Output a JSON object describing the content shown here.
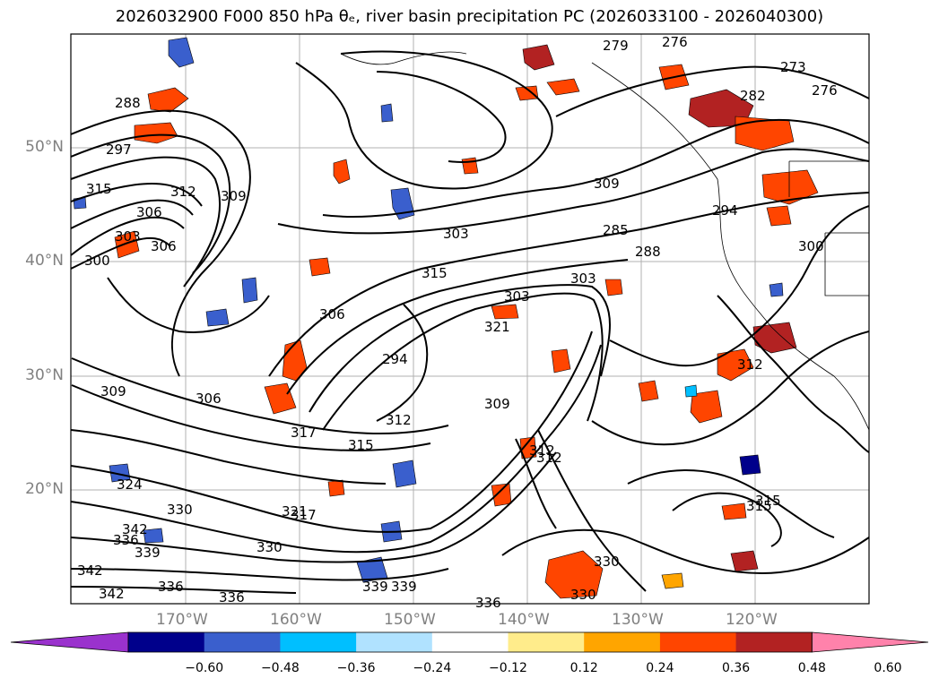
{
  "title": "2026032900 F000 850 hPa θₑ, river basin precipitation PC (2026033100 - 2026040300)",
  "map": {
    "lat_ticks": [
      "50°N",
      "40°N",
      "30°N",
      "20°N"
    ],
    "lon_ticks": [
      "170°W",
      "160°W",
      "150°W",
      "140°W",
      "130°W",
      "120°W"
    ],
    "contour_labels": [
      "279",
      "276",
      "273",
      "276",
      "282",
      "288",
      "297",
      "315",
      "312",
      "309",
      "306",
      "303",
      "300",
      "306",
      "309",
      "303",
      "285",
      "288",
      "294",
      "300",
      "315",
      "303",
      "321",
      "306",
      "294",
      "303",
      "312",
      "306",
      "309",
      "312",
      "317",
      "315",
      "309",
      "312",
      "315",
      "324",
      "330",
      "321",
      "342",
      "336",
      "330",
      "339",
      "336",
      "339",
      "336",
      "330",
      "330",
      "336",
      "339",
      "342",
      "342",
      "312",
      "315",
      "317"
    ]
  },
  "colorbar": {
    "ticks": [
      "−0.60",
      "−0.48",
      "−0.36",
      "−0.24",
      "−0.12",
      "0.12",
      "0.24",
      "0.36",
      "0.48",
      "0.60"
    ],
    "colors": [
      "#9a32cd",
      "#00008b",
      "#3a5fcd",
      "#00bfff",
      "#b0e2ff",
      "#ffffff",
      "#ffec8b",
      "#ffa500",
      "#ff4500",
      "#b22222",
      "#ff82ab"
    ]
  }
}
